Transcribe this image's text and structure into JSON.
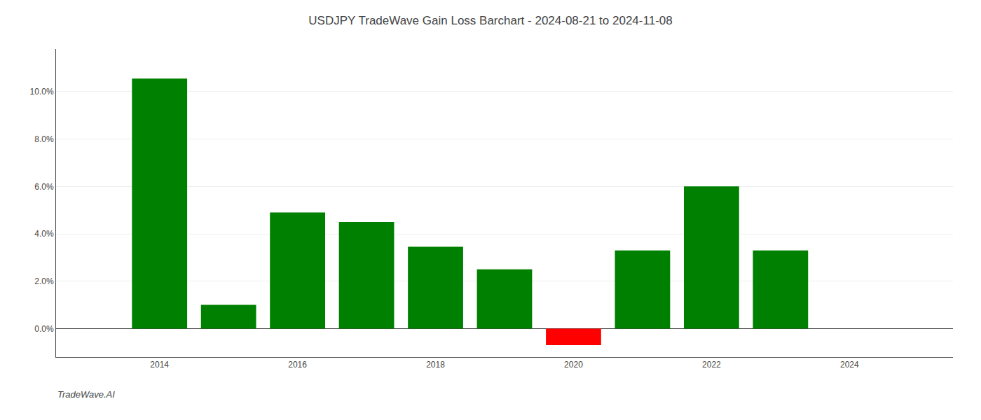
{
  "chart_data": {
    "type": "bar",
    "title": "USDJPY TradeWave Gain Loss Barchart - 2024-08-21 to 2024-11-08",
    "annotations": [
      "TradeWave.AI"
    ],
    "x": [
      2013,
      2014,
      2015,
      2016,
      2017,
      2018,
      2019,
      2020,
      2021,
      2022,
      2023,
      2024
    ],
    "values": [
      null,
      10.55,
      1.0,
      4.9,
      4.5,
      3.45,
      2.5,
      -0.7,
      3.3,
      6.0,
      3.3,
      null
    ],
    "colors": [
      "#008000",
      "#008000",
      "#008000",
      "#008000",
      "#008000",
      "#008000",
      "#008000",
      "#ff0000",
      "#008000",
      "#008000",
      "#008000",
      "#008000"
    ],
    "xlim": [
      2012.5,
      2025.5
    ],
    "xticks": [
      2014,
      2016,
      2018,
      2020,
      2022,
      2024
    ],
    "ylim": [
      -1.2,
      11.8
    ],
    "yticks": [
      {
        "value": 0.0,
        "label": "0.0%"
      },
      {
        "value": 2.0,
        "label": "2.0%"
      },
      {
        "value": 4.0,
        "label": "4.0%"
      },
      {
        "value": 6.0,
        "label": "6.0%"
      },
      {
        "value": 8.0,
        "label": "8.0%"
      },
      {
        "value": 10.0,
        "label": "10.0%"
      }
    ],
    "grid": true
  }
}
